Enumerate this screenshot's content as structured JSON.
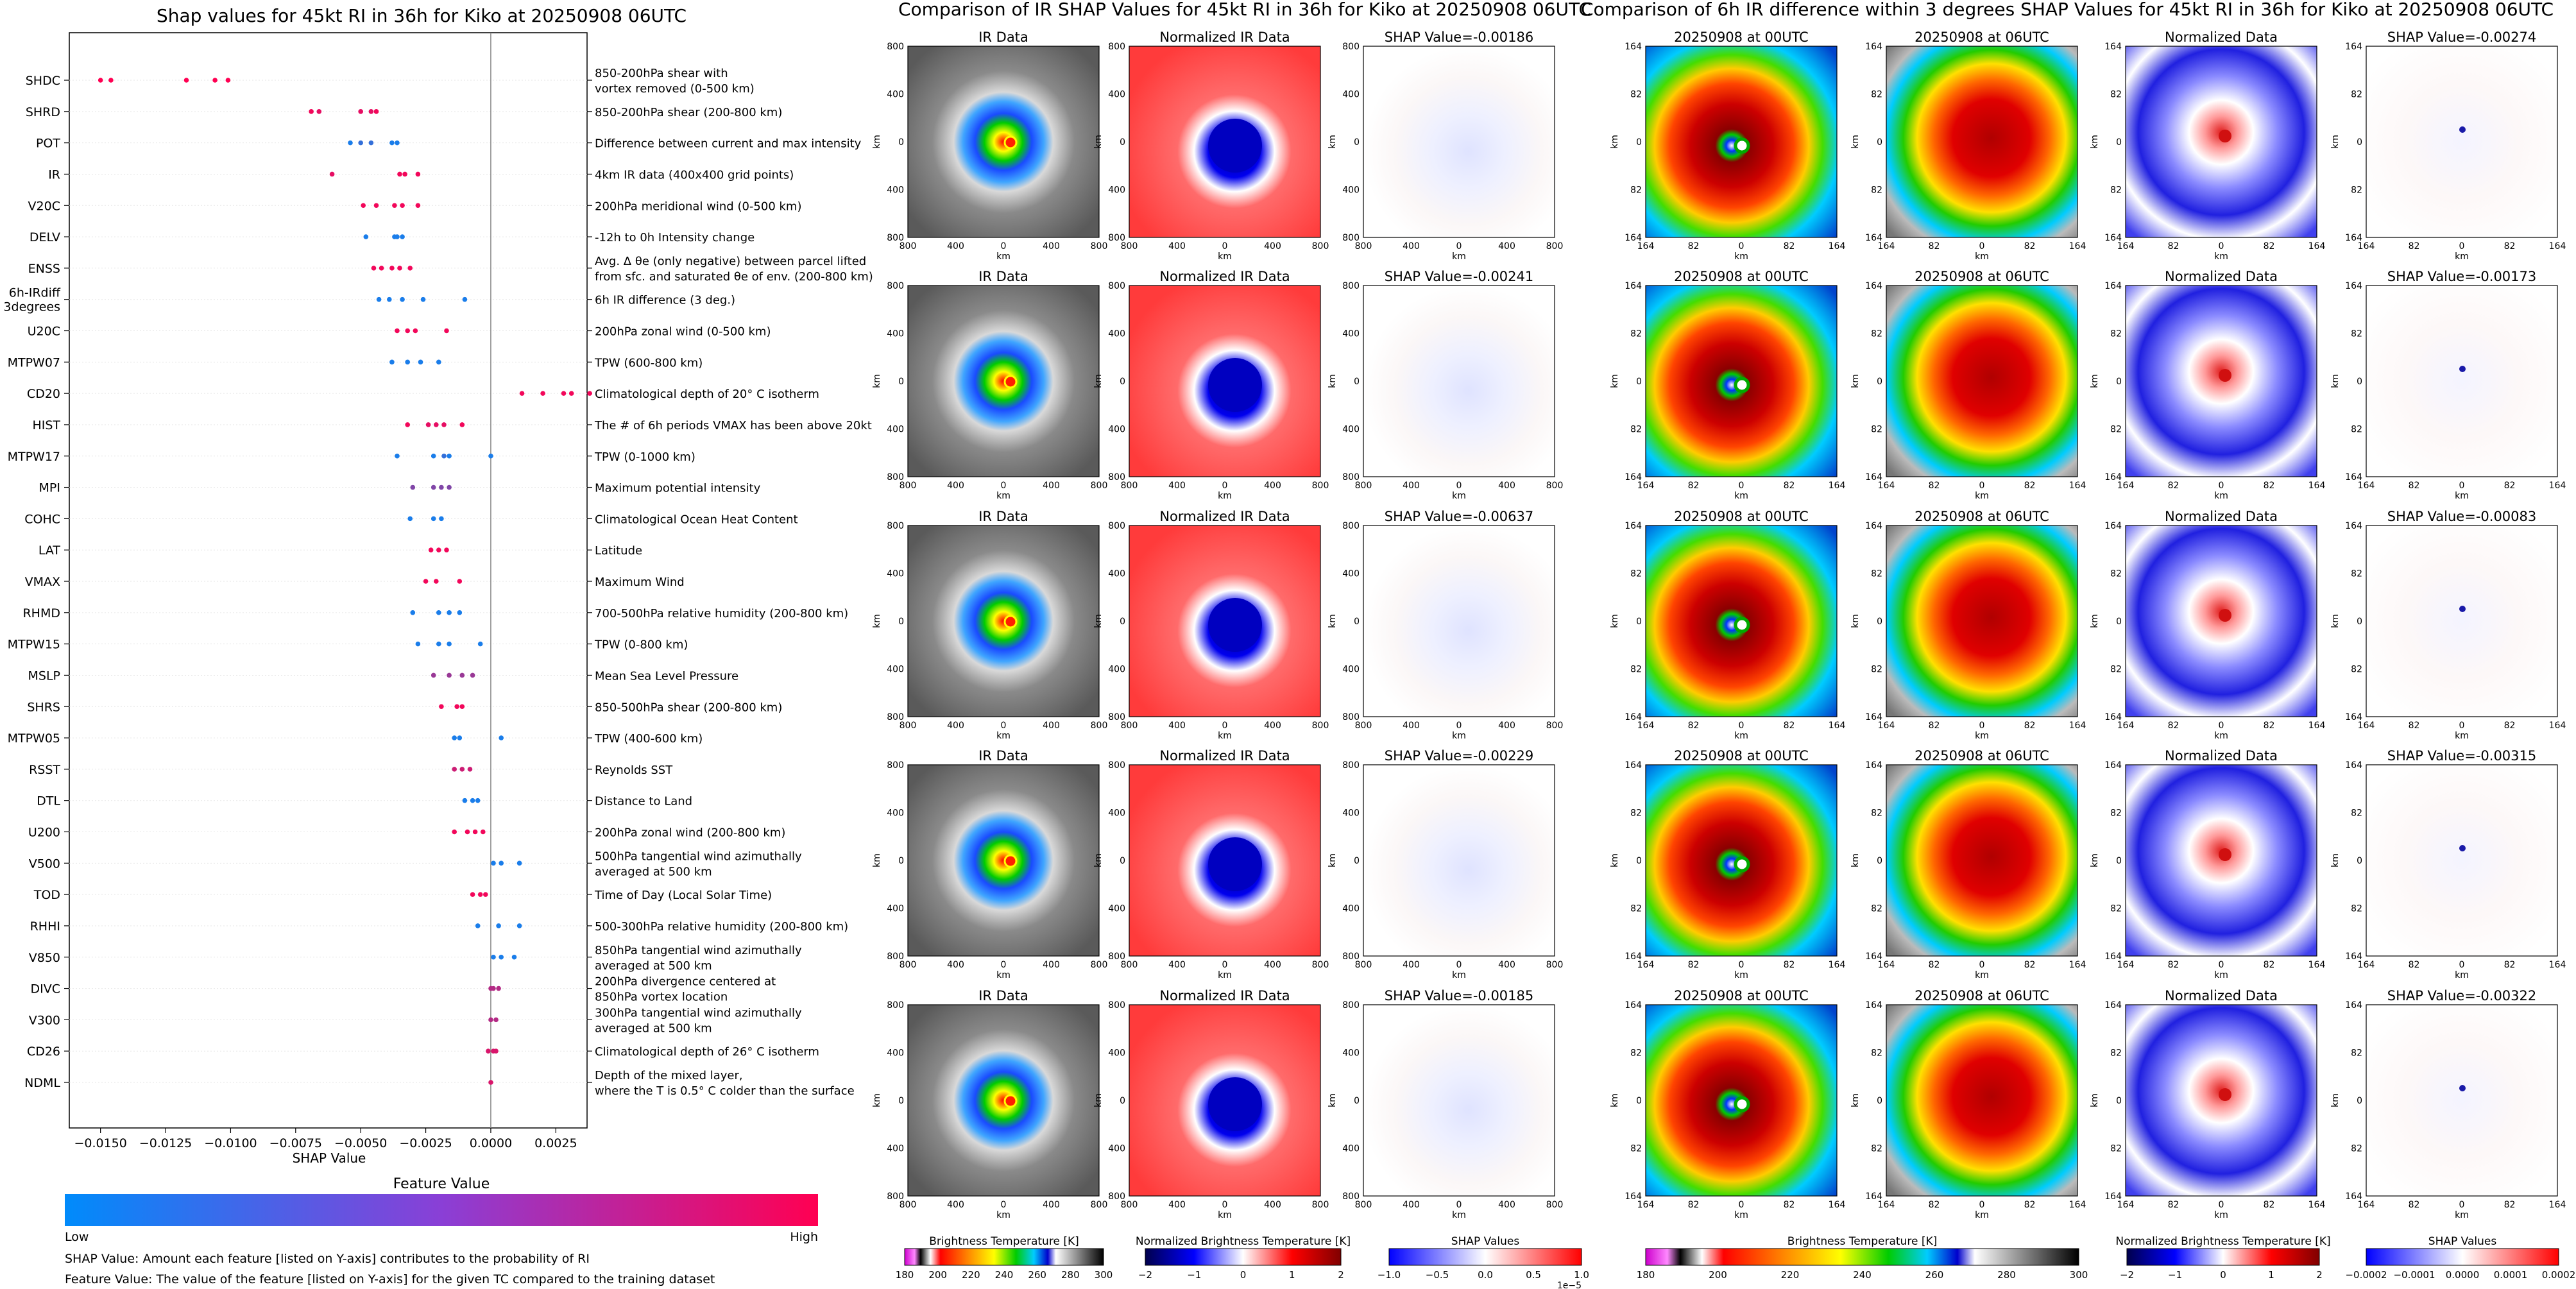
{
  "titles": {
    "shap_summary": "Shap values for 45kt RI in 36h for Kiko at 20250908 06UTC",
    "ir_comparison": "Comparison of IR SHAP Values for 45kt RI in 36h for Kiko at 20250908 06UTC",
    "diff_comparison": "Comparison of 6h IR difference within 3 degrees SHAP Values for 45kt RI in 36h for Kiko at 20250908 06UTC"
  },
  "panel_titles": {
    "ir": "IR Data",
    "norm_ir": "Normalized IR Data",
    "t00": "20250908 at 00UTC",
    "t06": "20250908 at 06UTC",
    "norm": "Normalized Data"
  },
  "shap_prefix": "SHAP Value=",
  "km_label": "km",
  "rows": [
    {
      "shap_ir": "-0.00186",
      "shap_diff": "-0.00274"
    },
    {
      "shap_ir": "-0.00241",
      "shap_diff": "-0.00173"
    },
    {
      "shap_ir": "-0.00637",
      "shap_diff": "-0.00083"
    },
    {
      "shap_ir": "-0.00229",
      "shap_diff": "-0.00315"
    },
    {
      "shap_ir": "-0.00185",
      "shap_diff": "-0.00322"
    }
  ],
  "map_ticks": {
    "ir_km": [
      "800",
      "400",
      "0",
      "400",
      "800"
    ],
    "diff_km": [
      "164",
      "82",
      "0",
      "82",
      "164"
    ]
  },
  "colorbars": {
    "feature_value": {
      "title": "Feature Value",
      "low": "Low",
      "high": "High",
      "colors": [
        "#008bfb",
        "#ff0052"
      ]
    },
    "brightness": {
      "label": "Brightness Temperature [K]",
      "ticks": [
        "180",
        "200",
        "220",
        "240",
        "260",
        "280",
        "300"
      ]
    },
    "norm_brightness": {
      "label": "Normalized Brightness Temperature [K]",
      "ticks": [
        "−2",
        "−1",
        "0",
        "1",
        "2"
      ]
    },
    "shap_ir": {
      "label": "SHAP Values",
      "ticks": [
        "−1.0",
        "−0.5",
        "0.0",
        "0.5",
        "1.0"
      ],
      "offset": "1e−5"
    },
    "brightness2": {
      "label": "Brightness Temperature [K]",
      "ticks": [
        "180",
        "200",
        "220",
        "240",
        "260",
        "280",
        "300"
      ]
    },
    "norm_brightness2": {
      "label": "Normalized Brightness Temperature [K]",
      "ticks": [
        "−2",
        "−1",
        "0",
        "1",
        "2"
      ]
    },
    "shap_diff": {
      "label": "SHAP Values",
      "ticks": [
        "−0.0002",
        "−0.0001",
        "0.0000",
        "0.0001",
        "0.0002"
      ]
    }
  },
  "footnotes": [
    "SHAP Value: Amount each feature [listed on Y-axis] contributes to the probability of RI",
    "Feature Value: The value of the feature [listed on Y-axis] for the given TC compared to the training dataset"
  ],
  "chart_data": {
    "type": "scatter",
    "title": "Shap values for 45kt RI in 36h for Kiko at 20250908 06UTC",
    "xlabel": "SHAP Value",
    "xlim": [
      -0.0162,
      0.0037
    ],
    "xticks": [
      -0.015,
      -0.0125,
      -0.01,
      -0.0075,
      -0.005,
      -0.0025,
      0.0,
      0.0025
    ],
    "xtick_labels": [
      "−0.0150",
      "−0.0125",
      "−0.0100",
      "−0.0075",
      "−0.0050",
      "−0.0025",
      "0.0000",
      "0.0025"
    ],
    "color_scale": "feature value (low = blue, high = magenta)",
    "features": [
      {
        "name": "SHDC",
        "description": [
          "850-200hPa shear with",
          "vortex removed (0-500 km)"
        ],
        "points": [
          [
            -0.015,
            1
          ],
          [
            -0.0146,
            1
          ],
          [
            -0.0117,
            1
          ],
          [
            -0.0106,
            1
          ],
          [
            -0.0101,
            1
          ]
        ]
      },
      {
        "name": "SHRD",
        "description": [
          "850-200hPa shear (200-800 km)"
        ],
        "points": [
          [
            -0.0069,
            0.95
          ],
          [
            -0.0066,
            0.9
          ],
          [
            -0.005,
            0.9
          ],
          [
            -0.0046,
            0.9
          ],
          [
            -0.0044,
            0.95
          ]
        ]
      },
      {
        "name": "POT",
        "description": [
          "Difference between current and max intensity"
        ],
        "points": [
          [
            -0.0054,
            0.1
          ],
          [
            -0.005,
            0.2
          ],
          [
            -0.0046,
            0.2
          ],
          [
            -0.0038,
            0.1
          ],
          [
            -0.0036,
            0.1
          ]
        ]
      },
      {
        "name": "IR",
        "description": [
          "4km IR data (400x400 grid points)"
        ],
        "points": [
          [
            -0.0061,
            0.9
          ],
          [
            -0.0035,
            0.95
          ],
          [
            -0.0033,
            0.95
          ],
          [
            -0.0028,
            0.95
          ]
        ]
      },
      {
        "name": "V20C",
        "description": [
          "200hPa meridional wind (0-500 km)"
        ],
        "points": [
          [
            -0.0049,
            0.95
          ],
          [
            -0.0044,
            0.95
          ],
          [
            -0.0037,
            0.95
          ],
          [
            -0.0034,
            0.95
          ],
          [
            -0.0028,
            0.95
          ]
        ]
      },
      {
        "name": "DELV",
        "description": [
          "-12h to 0h Intensity change"
        ],
        "points": [
          [
            -0.0048,
            0.1
          ],
          [
            -0.0037,
            0.1
          ],
          [
            -0.0036,
            0.1
          ],
          [
            -0.0034,
            0.1
          ]
        ]
      },
      {
        "name": "ENSS",
        "description": [
          "Avg. Δ θe (only negative) between parcel lifted",
          "from sfc. and saturated θe of env. (200-800 km)"
        ],
        "points": [
          [
            -0.0045,
            0.95
          ],
          [
            -0.0042,
            0.95
          ],
          [
            -0.0038,
            0.95
          ],
          [
            -0.0035,
            0.95
          ],
          [
            -0.0031,
            0.95
          ]
        ]
      },
      {
        "name": "6h-IRdiff 3degrees",
        "description": [
          "6h IR difference (3 deg.)"
        ],
        "points": [
          [
            -0.0043,
            0.1
          ],
          [
            -0.0039,
            0.1
          ],
          [
            -0.0034,
            0.1
          ],
          [
            -0.0026,
            0.1
          ],
          [
            -0.001,
            0.1
          ]
        ]
      },
      {
        "name": "U20C",
        "description": [
          "200hPa zonal wind (0-500 km)"
        ],
        "points": [
          [
            -0.0036,
            0.95
          ],
          [
            -0.0032,
            0.95
          ],
          [
            -0.0029,
            0.95
          ],
          [
            -0.0017,
            0.95
          ]
        ]
      },
      {
        "name": "MTPW07",
        "description": [
          "TPW (600-800 km)"
        ],
        "points": [
          [
            -0.0038,
            0.1
          ],
          [
            -0.0032,
            0.1
          ],
          [
            -0.0027,
            0.1
          ],
          [
            -0.002,
            0.1
          ]
        ]
      },
      {
        "name": "CD20",
        "description": [
          "Climatological depth of 20° C isotherm"
        ],
        "points": [
          [
            0.0012,
            0.95
          ],
          [
            0.002,
            0.95
          ],
          [
            0.0028,
            0.95
          ],
          [
            0.0031,
            0.95
          ],
          [
            0.0038,
            0.95
          ]
        ]
      },
      {
        "name": "HIST",
        "description": [
          "The # of 6h periods VMAX has been above 20kt"
        ],
        "points": [
          [
            -0.0032,
            0.95
          ],
          [
            -0.0024,
            0.9
          ],
          [
            -0.0021,
            0.9
          ],
          [
            -0.0018,
            0.9
          ],
          [
            -0.0011,
            0.95
          ]
        ]
      },
      {
        "name": "MTPW17",
        "description": [
          "TPW (0-1000 km)"
        ],
        "points": [
          [
            -0.0036,
            0.1
          ],
          [
            -0.0022,
            0.1
          ],
          [
            -0.0018,
            0.2
          ],
          [
            -0.0016,
            0.1
          ],
          [
            0.0,
            0.1
          ]
        ]
      },
      {
        "name": "MPI",
        "description": [
          "Maximum potential intensity"
        ],
        "points": [
          [
            -0.003,
            0.5
          ],
          [
            -0.0022,
            0.5
          ],
          [
            -0.0019,
            0.5
          ],
          [
            -0.0016,
            0.5
          ]
        ]
      },
      {
        "name": "COHC",
        "description": [
          "Climatological Ocean Heat Content"
        ],
        "points": [
          [
            -0.0031,
            0.1
          ],
          [
            -0.0022,
            0.1
          ],
          [
            -0.0019,
            0.1
          ]
        ]
      },
      {
        "name": "LAT",
        "description": [
          "Latitude"
        ],
        "points": [
          [
            -0.0023,
            0.95
          ],
          [
            -0.002,
            0.95
          ],
          [
            -0.0017,
            0.95
          ]
        ]
      },
      {
        "name": "VMAX",
        "description": [
          "Maximum Wind"
        ],
        "points": [
          [
            -0.0025,
            0.95
          ],
          [
            -0.0021,
            0.95
          ],
          [
            -0.0012,
            0.95
          ]
        ]
      },
      {
        "name": "RHMD",
        "description": [
          "700-500hPa relative humidity (200-800 km)"
        ],
        "points": [
          [
            -0.003,
            0.1
          ],
          [
            -0.002,
            0.1
          ],
          [
            -0.0016,
            0.1
          ],
          [
            -0.0012,
            0.1
          ]
        ]
      },
      {
        "name": "MTPW15",
        "description": [
          "TPW (0-800 km)"
        ],
        "points": [
          [
            -0.0028,
            0.1
          ],
          [
            -0.002,
            0.1
          ],
          [
            -0.0016,
            0.1
          ],
          [
            -0.0004,
            0.1
          ]
        ]
      },
      {
        "name": "MSLP",
        "description": [
          "Mean Sea Level Pressure"
        ],
        "points": [
          [
            -0.0022,
            0.6
          ],
          [
            -0.0016,
            0.6
          ],
          [
            -0.0011,
            0.6
          ],
          [
            -0.0007,
            0.6
          ]
        ]
      },
      {
        "name": "SHRS",
        "description": [
          "850-500hPa shear (200-800 km)"
        ],
        "points": [
          [
            -0.0019,
            0.95
          ],
          [
            -0.0013,
            0.95
          ],
          [
            -0.0011,
            0.95
          ]
        ]
      },
      {
        "name": "MTPW05",
        "description": [
          "TPW (400-600 km)"
        ],
        "points": [
          [
            -0.0014,
            0.1
          ],
          [
            -0.0012,
            0.1
          ],
          [
            0.0004,
            0.1
          ]
        ]
      },
      {
        "name": "RSST",
        "description": [
          "Reynolds SST"
        ],
        "points": [
          [
            -0.0014,
            0.8
          ],
          [
            -0.0011,
            0.8
          ],
          [
            -0.0008,
            0.8
          ]
        ]
      },
      {
        "name": "DTL",
        "description": [
          "Distance to Land"
        ],
        "points": [
          [
            -0.001,
            0.1
          ],
          [
            -0.0007,
            0.1
          ],
          [
            -0.0005,
            0.1
          ]
        ]
      },
      {
        "name": "U200",
        "description": [
          "200hPa zonal wind (200-800 km)"
        ],
        "points": [
          [
            -0.0014,
            0.95
          ],
          [
            -0.0009,
            0.95
          ],
          [
            -0.0006,
            0.95
          ],
          [
            -0.0003,
            0.95
          ]
        ]
      },
      {
        "name": "V500",
        "description": [
          "500hPa tangential wind azimuthally",
          "averaged at 500 km"
        ],
        "points": [
          [
            0.0001,
            0.1
          ],
          [
            0.0004,
            0.1
          ],
          [
            0.0011,
            0.1
          ]
        ]
      },
      {
        "name": "TOD",
        "description": [
          "Time of Day (Local Solar Time)"
        ],
        "points": [
          [
            -0.0007,
            0.95
          ],
          [
            -0.0004,
            0.95
          ],
          [
            -0.0002,
            0.95
          ]
        ]
      },
      {
        "name": "RHHI",
        "description": [
          "500-300hPa relative humidity (200-800 km)"
        ],
        "points": [
          [
            -0.0005,
            0.1
          ],
          [
            0.0003,
            0.1
          ],
          [
            0.0011,
            0.1
          ]
        ]
      },
      {
        "name": "V850",
        "description": [
          "850hPa tangential wind azimuthally",
          "averaged at 500 km"
        ],
        "points": [
          [
            0.0001,
            0.1
          ],
          [
            0.0004,
            0.1
          ],
          [
            0.0009,
            0.1
          ]
        ]
      },
      {
        "name": "DIVC",
        "description": [
          "200hPa divergence centered at",
          "850hPa vortex location"
        ],
        "points": [
          [
            0.0,
            0.7
          ],
          [
            0.0001,
            0.7
          ],
          [
            0.0003,
            0.7
          ]
        ]
      },
      {
        "name": "V300",
        "description": [
          "300hPa tangential wind azimuthally",
          "averaged at 500 km"
        ],
        "points": [
          [
            0.0,
            0.7
          ],
          [
            0.0002,
            0.7
          ]
        ]
      },
      {
        "name": "CD26",
        "description": [
          "Climatological depth of 26° C isotherm"
        ],
        "points": [
          [
            -0.0001,
            0.85
          ],
          [
            0.0001,
            0.85
          ],
          [
            0.0002,
            0.85
          ]
        ]
      },
      {
        "name": "NDML",
        "description": [
          "Depth of the mixed layer,",
          "where the T is 0.5° C colder than the surface"
        ],
        "points": [
          [
            0.0,
            0.85
          ]
        ]
      }
    ]
  }
}
